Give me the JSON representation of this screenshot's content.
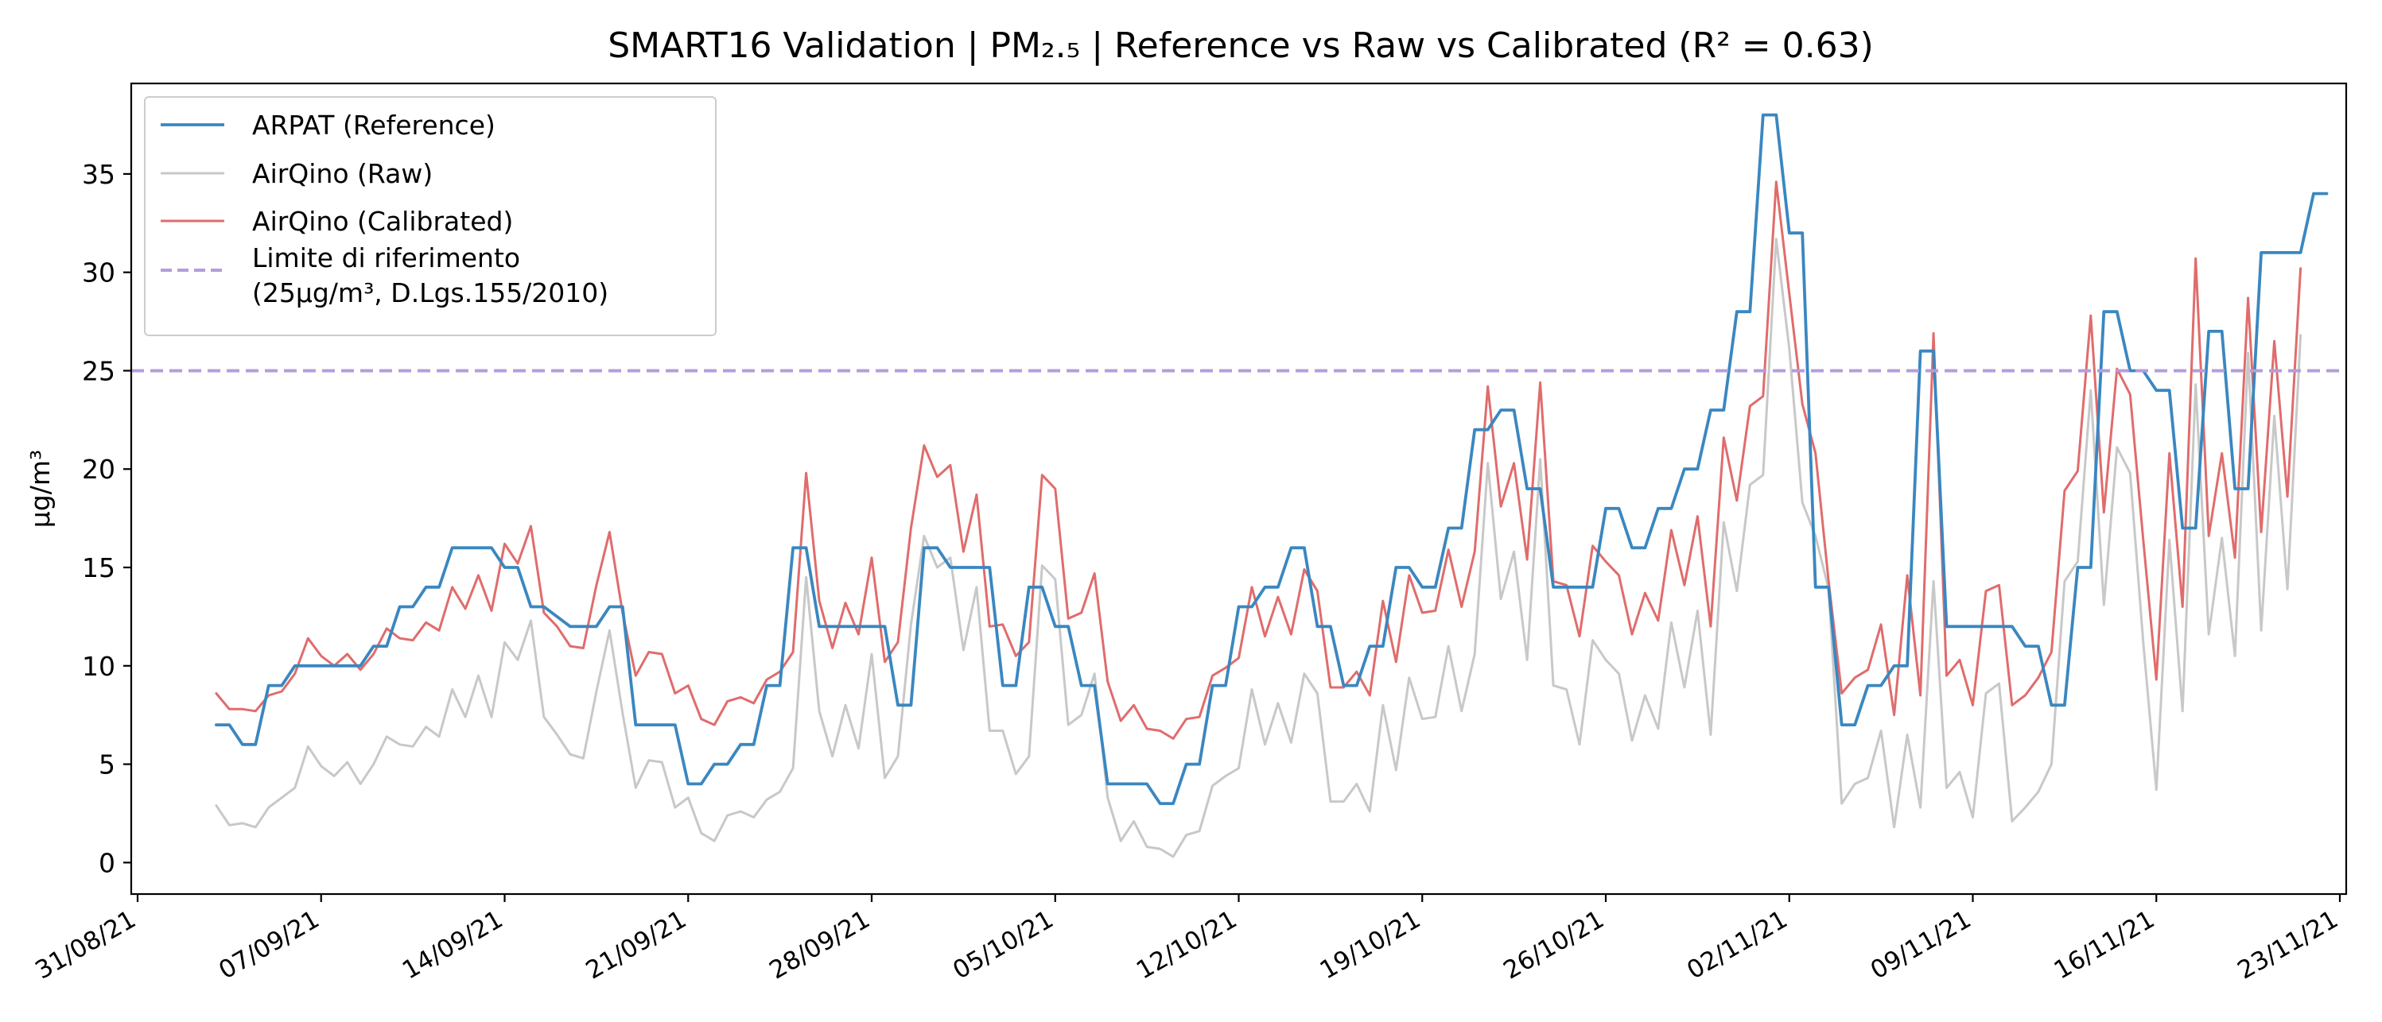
{
  "chart_data": {
    "type": "line",
    "title": "SMART16 Validation | PM₂.₅ | Reference vs Raw vs Calibrated (R² = 0.63)",
    "xlabel": "",
    "ylabel": "µg/m³",
    "x_range": [
      "2021-08-31",
      "2021-11-23"
    ],
    "x_ticks": [
      "2021-08-31",
      "2021-09-07",
      "2021-09-14",
      "2021-09-21",
      "2021-09-28",
      "2021-10-05",
      "2021-10-12",
      "2021-10-19",
      "2021-10-26",
      "2021-11-02",
      "2021-11-09",
      "2021-11-16",
      "2021-11-23"
    ],
    "x_tick_labels": [
      "31/08/21",
      "07/09/21",
      "14/09/21",
      "21/09/21",
      "28/09/21",
      "05/10/21",
      "12/10/21",
      "19/10/21",
      "26/10/21",
      "02/11/21",
      "09/11/21",
      "16/11/21",
      "23/11/21"
    ],
    "ylim": [
      -1.6,
      39.6
    ],
    "y_ticks": [
      0,
      5,
      10,
      15,
      20,
      25,
      30,
      35
    ],
    "grid": false,
    "legend_position": "top-left",
    "x_start": "2021-09-03",
    "x_step_days": 0.5,
    "series": [
      {
        "name": "ARPAT (Reference)",
        "color": "#3a87c0",
        "values": [
          7,
          7,
          6,
          6,
          9,
          9,
          10,
          10,
          10,
          10,
          10,
          10,
          11,
          11,
          13,
          13,
          14,
          14,
          16,
          16,
          16,
          16,
          15,
          15,
          13,
          13,
          12.5,
          12,
          12,
          12,
          13,
          13,
          7,
          7,
          7,
          7,
          4,
          4,
          5,
          5,
          6,
          6,
          9,
          9,
          16,
          16,
          12,
          12,
          12,
          12,
          12,
          12,
          8,
          8,
          16,
          16,
          15,
          15,
          15,
          15,
          9,
          9,
          14,
          14,
          12,
          12,
          9,
          9,
          4,
          4,
          4,
          4,
          3,
          3,
          5,
          5,
          9,
          9,
          13,
          13,
          14,
          14,
          16,
          16,
          12,
          12,
          9,
          9,
          11,
          11,
          15,
          15,
          14,
          14,
          17,
          17,
          22,
          22,
          23,
          23,
          19,
          19,
          14,
          14,
          14,
          14,
          18,
          18,
          16,
          16,
          18,
          18,
          20,
          20,
          23,
          23,
          28,
          28,
          38,
          38,
          32,
          32,
          14,
          14,
          7,
          7,
          9,
          9,
          10,
          10,
          26,
          26,
          12,
          12,
          12,
          12,
          12,
          12,
          11,
          11,
          8,
          8,
          15,
          15,
          28,
          28,
          25,
          25,
          24,
          24,
          17,
          17,
          27,
          27,
          19,
          19,
          31,
          31,
          31,
          31,
          34,
          34
        ]
      },
      {
        "name": "AirQino (Raw)",
        "color": "#c8c8c8",
        "values": [
          2.9,
          1.9,
          2,
          1.8,
          2.8,
          3.3,
          3.8,
          5.9,
          4.9,
          4.4,
          5.1,
          4,
          5,
          6.4,
          6,
          5.9,
          6.9,
          6.4,
          8.8,
          7.4,
          9.5,
          7.4,
          11.2,
          10.3,
          12.3,
          7.4,
          6.5,
          5.5,
          5.3,
          8.7,
          11.8,
          7.6,
          3.8,
          5.2,
          5.1,
          2.8,
          3.3,
          1.5,
          1.1,
          2.4,
          2.6,
          2.3,
          3.2,
          3.6,
          4.8,
          14.5,
          7.7,
          5.4,
          8,
          5.8,
          10.6,
          4.3,
          5.4,
          12.1,
          16.6,
          15,
          15.5,
          10.8,
          14,
          6.7,
          6.7,
          4.5,
          5.4,
          15.1,
          14.4,
          7,
          7.5,
          9.6,
          3.3,
          1.1,
          2.1,
          0.8,
          0.7,
          0.3,
          1.4,
          1.6,
          3.9,
          4.4,
          4.8,
          8.8,
          6,
          8.1,
          6.1,
          9.6,
          8.6,
          3.1,
          3.1,
          4,
          2.6,
          8,
          4.7,
          9.4,
          7.3,
          7.4,
          11,
          7.7,
          10.6,
          20.3,
          13.4,
          15.8,
          10.3,
          20.5,
          9,
          8.8,
          6,
          11.3,
          10.3,
          9.6,
          6.2,
          8.5,
          6.8,
          12.2,
          8.9,
          12.8,
          6.5,
          17.3,
          13.8,
          19.2,
          19.7,
          31.7,
          26.1,
          18.3,
          16.6,
          13.9,
          3,
          4,
          4.3,
          6.7,
          1.8,
          6.5,
          2.8,
          14.3,
          3.8,
          4.6,
          2.3,
          8.6,
          9.1,
          2.1,
          2.8,
          3.6,
          5,
          14.3,
          15.3,
          24,
          13.1,
          21.1,
          19.8,
          11.2,
          3.7,
          16.4,
          7.7,
          24.3,
          11.6,
          16.5,
          10.5,
          25.9,
          11.8,
          22.7,
          13.9,
          26.8
        ]
      },
      {
        "name": "AirQino (Calibrated)",
        "color": "#e06c6c",
        "values": [
          8.6,
          7.8,
          7.8,
          7.7,
          8.5,
          8.7,
          9.6,
          11.4,
          10.5,
          10,
          10.6,
          9.8,
          10.6,
          11.9,
          11.4,
          11.3,
          12.2,
          11.8,
          14,
          12.9,
          14.6,
          12.8,
          16.2,
          15.2,
          17.1,
          12.7,
          12,
          11,
          10.9,
          14.1,
          16.8,
          12.7,
          9.5,
          10.7,
          10.6,
          8.6,
          9,
          7.3,
          7,
          8.2,
          8.4,
          8.1,
          9.3,
          9.7,
          10.7,
          19.8,
          13.3,
          10.9,
          13.2,
          11.6,
          15.5,
          10.2,
          11.2,
          17,
          21.2,
          19.6,
          20.2,
          15.8,
          18.7,
          12,
          12.1,
          10.5,
          11.2,
          19.7,
          19,
          12.4,
          12.7,
          14.7,
          9.2,
          7.2,
          8,
          6.8,
          6.7,
          6.3,
          7.3,
          7.4,
          9.5,
          9.9,
          10.4,
          14,
          11.5,
          13.5,
          11.6,
          14.9,
          13.8,
          8.9,
          8.9,
          9.7,
          8.5,
          13.3,
          10.2,
          14.6,
          12.7,
          12.8,
          15.9,
          13,
          15.8,
          24.2,
          18.1,
          20.3,
          15.4,
          24.4,
          14.3,
          14.1,
          11.5,
          16.1,
          15.3,
          14.6,
          11.6,
          13.7,
          12.3,
          16.9,
          14.1,
          17.6,
          12,
          21.6,
          18.4,
          23.2,
          23.7,
          34.6,
          28.9,
          23.3,
          20.8,
          14.3,
          8.6,
          9.4,
          9.8,
          12.1,
          7.5,
          14.6,
          8.5,
          26.9,
          9.5,
          10.3,
          8,
          13.8,
          14.1,
          8,
          8.5,
          9.4,
          10.7,
          18.9,
          19.9,
          27.8,
          17.8,
          25.1,
          23.8,
          16.4,
          9.3,
          20.8,
          13,
          30.7,
          16.6,
          20.8,
          15.5,
          28.7,
          16.8,
          26.5,
          18.6,
          30.2
        ]
      }
    ],
    "reference_line": {
      "value": 25,
      "color": "#b39ddb",
      "label": "Limite di riferimento\n(25µg/m³, D.Lgs.155/2010)"
    }
  }
}
